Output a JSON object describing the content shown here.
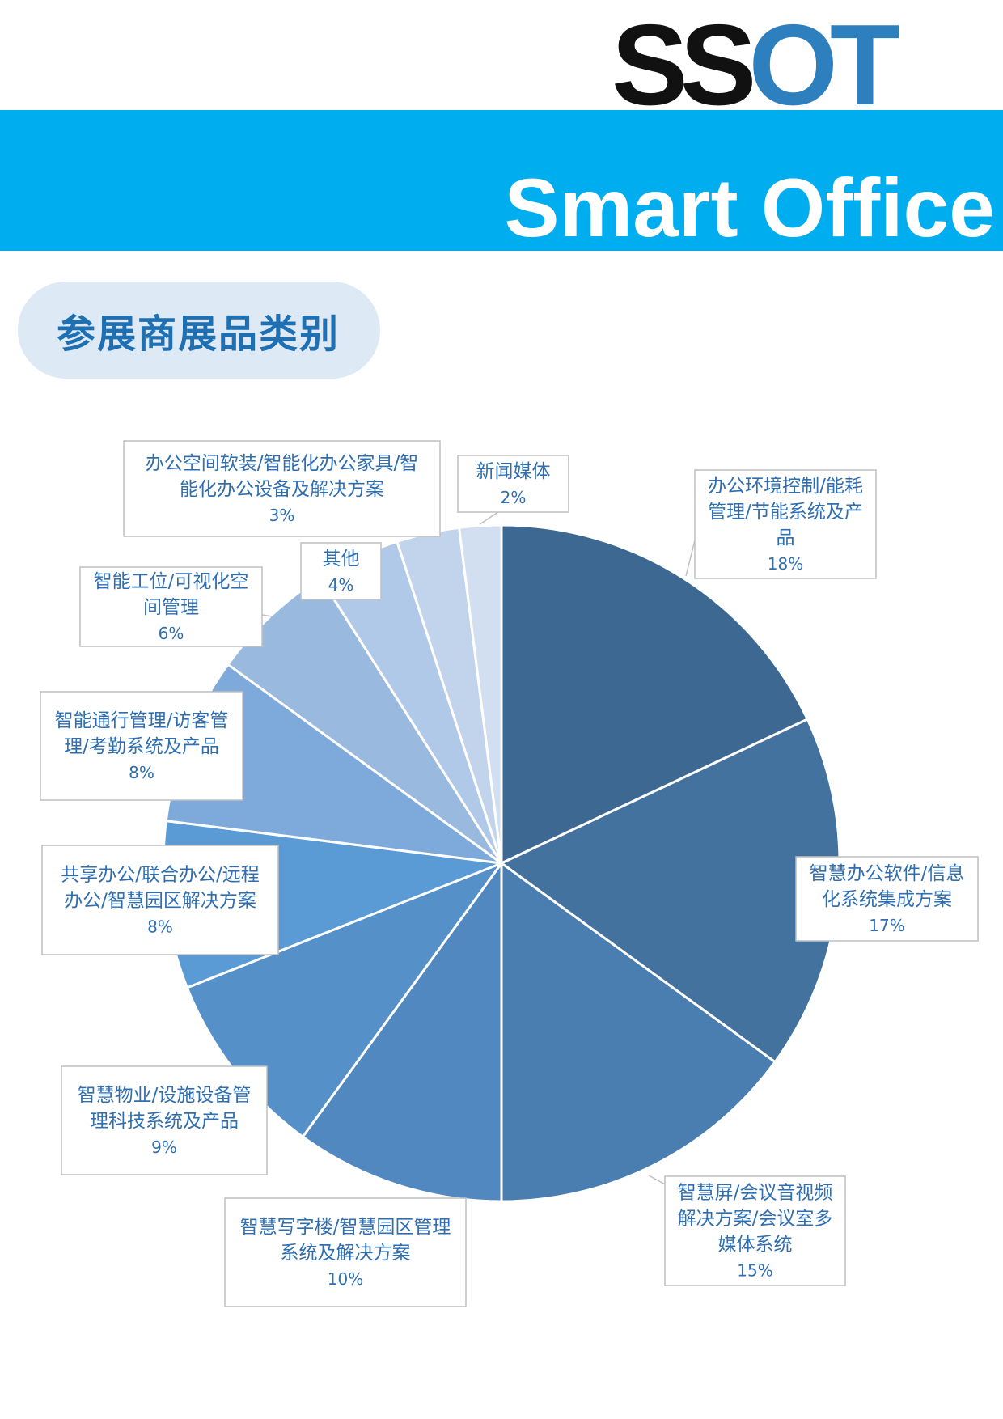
{
  "logo": {
    "part1": "SS",
    "part2": "OT"
  },
  "banner": {
    "title": "Smart Office"
  },
  "section": {
    "title": "参展商展品类别"
  },
  "colors": {
    "banner": "#00aeef",
    "logo_accent": "#2e7fbd",
    "label_text": "#2f6eb0"
  },
  "chart_data": {
    "type": "pie",
    "title": "",
    "start": "12 o'clock",
    "direction": "clockwise",
    "slices": [
      {
        "label_lines": [
          "办公环境控制/能耗",
          "管理/节能系统及产",
          "品"
        ],
        "percent_label": "18%",
        "value": 18,
        "color": "#3c6891"
      },
      {
        "label_lines": [
          "智慧办公软件/信息",
          "化系统集成方案"
        ],
        "percent_label": "17%",
        "value": 17,
        "color": "#44729f"
      },
      {
        "label_lines": [
          "智慧屏/会议音视频",
          "解决方案/会议室多",
          "媒体系统"
        ],
        "percent_label": "15%",
        "value": 15,
        "color": "#4a7db0"
      },
      {
        "label_lines": [
          "智慧写字楼/智慧园区管理",
          "系统及解决方案"
        ],
        "percent_label": "10%",
        "value": 10,
        "color": "#5088bf"
      },
      {
        "label_lines": [
          "智慧物业/设施设备管",
          "理科技系统及产品"
        ],
        "percent_label": "9%",
        "value": 9,
        "color": "#5590c9"
      },
      {
        "label_lines": [
          "共享办公/联合办公/远程",
          "办公/智慧园区解决方案"
        ],
        "percent_label": "8%",
        "value": 8,
        "color": "#5b9bd5"
      },
      {
        "label_lines": [
          "智能通行管理/访客管",
          "理/考勤系统及产品"
        ],
        "percent_label": "8%",
        "value": 8,
        "color": "#7eaadb"
      },
      {
        "label_lines": [
          "智能工位/可视化空",
          "间管理"
        ],
        "percent_label": "6%",
        "value": 6,
        "color": "#9ab9df"
      },
      {
        "label_lines": [
          "其他"
        ],
        "percent_label": "4%",
        "value": 4,
        "color": "#b1c9e8"
      },
      {
        "label_lines": [
          "办公空间软装/智能化办公家具/智",
          "能化办公设备及解决方案"
        ],
        "percent_label": "3%",
        "value": 3,
        "color": "#c2d4ec"
      },
      {
        "label_lines": [
          "新闻媒体"
        ],
        "percent_label": "2%",
        "value": 2,
        "color": "#d2dff0"
      }
    ]
  }
}
